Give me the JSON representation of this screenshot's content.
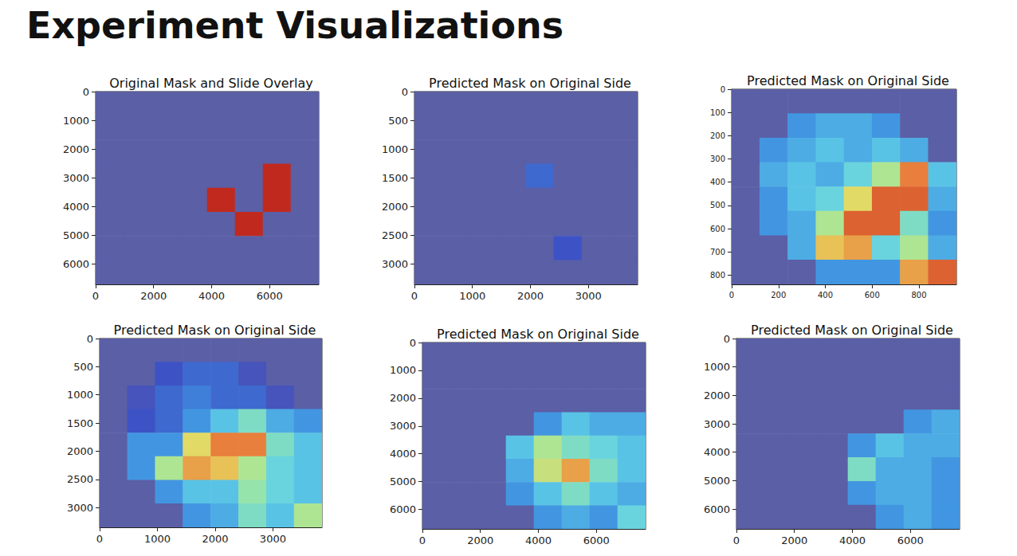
{
  "title": "Experiment Visualizations",
  "chart_data": [
    {
      "type": "heatmap",
      "title": "Original Mask and Slide Overlay",
      "xlim": [
        0,
        7700
      ],
      "xticks": [
        0,
        2000,
        4000,
        6000
      ],
      "ylim": [
        6700,
        0
      ],
      "yticks": [
        0,
        1000,
        2000,
        3000,
        4000,
        5000,
        6000
      ],
      "zlim": [
        0,
        1
      ],
      "x": [
        481,
        1444,
        2406,
        3369,
        4331,
        5294,
        6256,
        7219
      ],
      "y": [
        419,
        1256,
        2094,
        2931,
        3769,
        4606,
        5444,
        6281
      ],
      "z": [
        [
          0,
          0,
          0,
          0,
          0,
          0,
          0,
          0
        ],
        [
          0,
          0,
          0,
          0,
          0,
          0,
          0,
          0
        ],
        [
          0,
          0,
          0,
          0,
          0,
          0,
          0,
          0
        ],
        [
          0,
          0,
          0,
          0,
          0,
          0,
          1,
          0
        ],
        [
          0,
          0,
          0,
          0,
          1,
          0,
          1,
          0
        ],
        [
          0,
          0,
          0,
          0,
          0,
          1,
          0,
          0
        ],
        [
          0,
          0,
          0,
          0,
          0,
          0,
          0,
          0
        ],
        [
          0,
          0,
          0,
          0,
          0,
          0,
          0,
          0
        ]
      ]
    },
    {
      "type": "heatmap",
      "title": "Predicted Mask on Original Side",
      "xlim": [
        0,
        3850
      ],
      "xticks": [
        0,
        1000,
        2000,
        3000
      ],
      "ylim": [
        3350,
        0
      ],
      "yticks": [
        0,
        500,
        1000,
        1500,
        2000,
        2500,
        3000
      ],
      "zlim": [
        0,
        1
      ],
      "x": [
        241,
        722,
        1203,
        1684,
        2166,
        2647,
        3128,
        3609
      ],
      "y": [
        209,
        628,
        1047,
        1466,
        1884,
        2303,
        2722,
        3141
      ],
      "z": [
        [
          0,
          0,
          0,
          0,
          0,
          0,
          0,
          0
        ],
        [
          0,
          0,
          0,
          0,
          0,
          0,
          0,
          0
        ],
        [
          0,
          0,
          0,
          0,
          0,
          0,
          0,
          0
        ],
        [
          0,
          0,
          0,
          0,
          0.2,
          0,
          0,
          0
        ],
        [
          0,
          0,
          0,
          0,
          0,
          0,
          0,
          0
        ],
        [
          0,
          0,
          0,
          0,
          0,
          0,
          0,
          0
        ],
        [
          0,
          0,
          0,
          0,
          0,
          0.15,
          0,
          0
        ],
        [
          0,
          0,
          0,
          0,
          0,
          0,
          0,
          0
        ]
      ]
    },
    {
      "type": "heatmap",
      "title": "Predicted Mask on Original Side",
      "xlim": [
        0,
        960
      ],
      "xticks": [
        0,
        200,
        400,
        600,
        800
      ],
      "ylim": [
        840,
        0
      ],
      "yticks": [
        0,
        100,
        200,
        300,
        400,
        500,
        600,
        700,
        800
      ],
      "zlim": [
        0,
        1
      ],
      "x": [
        60,
        180,
        300,
        420,
        540,
        660,
        780,
        900
      ],
      "y": [
        52.5,
        157.5,
        262.5,
        367.5,
        472.5,
        577.5,
        682.5,
        787.5
      ],
      "z": [
        [
          0,
          0,
          0,
          0,
          0,
          0,
          0,
          0
        ],
        [
          0,
          0,
          0.3,
          0.35,
          0.35,
          0.3,
          0,
          0
        ],
        [
          0,
          0.3,
          0.35,
          0.4,
          0.35,
          0.4,
          0.35,
          0
        ],
        [
          0,
          0.35,
          0.4,
          0.35,
          0.45,
          0.6,
          0.85,
          0.4
        ],
        [
          0,
          0.3,
          0.4,
          0.45,
          0.7,
          0.9,
          0.9,
          0.35
        ],
        [
          0,
          0.3,
          0.35,
          0.6,
          0.9,
          0.9,
          0.5,
          0.3
        ],
        [
          0,
          0,
          0.35,
          0.75,
          0.8,
          0.45,
          0.6,
          0.35
        ],
        [
          0,
          0,
          0,
          0.3,
          0.3,
          0.3,
          0.8,
          0.9
        ]
      ]
    },
    {
      "type": "heatmap",
      "title": "Predicted Mask on Original Side",
      "xlim": [
        0,
        3850
      ],
      "xticks": [
        0,
        1000,
        2000,
        3000
      ],
      "ylim": [
        3350,
        0
      ],
      "yticks": [
        0,
        500,
        1000,
        1500,
        2000,
        2500,
        3000
      ],
      "zlim": [
        0,
        1
      ],
      "x": [
        241,
        722,
        1203,
        1684,
        2166,
        2647,
        3128,
        3609
      ],
      "y": [
        209,
        628,
        1047,
        1466,
        1884,
        2303,
        2722,
        3141
      ],
      "z": [
        [
          0,
          0,
          0,
          0,
          0,
          0,
          0,
          0
        ],
        [
          0,
          0,
          0.15,
          0.2,
          0.2,
          0.1,
          0,
          0
        ],
        [
          0,
          0.1,
          0.2,
          0.25,
          0.2,
          0.2,
          0.1,
          0
        ],
        [
          0,
          0.15,
          0.2,
          0.3,
          0.4,
          0.5,
          0.35,
          0.3
        ],
        [
          0,
          0.3,
          0.3,
          0.7,
          0.85,
          0.85,
          0.5,
          0.4
        ],
        [
          0,
          0.3,
          0.6,
          0.8,
          0.75,
          0.6,
          0.45,
          0.4
        ],
        [
          0,
          0,
          0.3,
          0.4,
          0.4,
          0.55,
          0.45,
          0.4
        ],
        [
          0,
          0,
          0,
          0.3,
          0.35,
          0.5,
          0.4,
          0.6
        ]
      ]
    },
    {
      "type": "heatmap",
      "title": "Predicted Mask on Original Side",
      "xlim": [
        0,
        7700
      ],
      "xticks": [
        0,
        2000,
        4000,
        6000
      ],
      "ylim": [
        6700,
        0
      ],
      "yticks": [
        0,
        1000,
        2000,
        3000,
        4000,
        5000,
        6000
      ],
      "zlim": [
        0,
        1
      ],
      "x": [
        481,
        1444,
        2406,
        3369,
        4331,
        5294,
        6256,
        7219
      ],
      "y": [
        419,
        1256,
        2094,
        2931,
        3769,
        4606,
        5444,
        6281
      ],
      "z": [
        [
          0,
          0,
          0,
          0,
          0,
          0,
          0,
          0
        ],
        [
          0,
          0,
          0,
          0,
          0,
          0,
          0,
          0
        ],
        [
          0,
          0,
          0,
          0,
          0,
          0,
          0,
          0
        ],
        [
          0,
          0,
          0,
          0,
          0.3,
          0.4,
          0.35,
          0.35
        ],
        [
          0,
          0,
          0,
          0.4,
          0.6,
          0.5,
          0.45,
          0.4
        ],
        [
          0,
          0,
          0,
          0.35,
          0.65,
          0.8,
          0.5,
          0.4
        ],
        [
          0,
          0,
          0,
          0.3,
          0.4,
          0.5,
          0.4,
          0.35
        ],
        [
          0,
          0,
          0,
          0,
          0.3,
          0.35,
          0.3,
          0.45
        ]
      ]
    },
    {
      "type": "heatmap",
      "title": "Predicted Mask on Original Side",
      "xlim": [
        0,
        7700
      ],
      "xticks": [
        0,
        2000,
        4000,
        6000
      ],
      "ylim": [
        6700,
        0
      ],
      "yticks": [
        0,
        1000,
        2000,
        3000,
        4000,
        5000,
        6000
      ],
      "zlim": [
        0,
        1
      ],
      "x": [
        481,
        1444,
        2406,
        3369,
        4331,
        5294,
        6256,
        7219
      ],
      "y": [
        419,
        1256,
        2094,
        2931,
        3769,
        4606,
        5444,
        6281
      ],
      "z": [
        [
          0,
          0,
          0,
          0,
          0,
          0,
          0,
          0
        ],
        [
          0,
          0,
          0,
          0,
          0,
          0,
          0,
          0
        ],
        [
          0,
          0,
          0,
          0,
          0,
          0,
          0,
          0
        ],
        [
          0,
          0,
          0,
          0,
          0,
          0,
          0.3,
          0.35
        ],
        [
          0,
          0,
          0,
          0,
          0.3,
          0.4,
          0.35,
          0.35
        ],
        [
          0,
          0,
          0,
          0,
          0.5,
          0.35,
          0.35,
          0.3
        ],
        [
          0,
          0,
          0,
          0,
          0.3,
          0.35,
          0.35,
          0.3
        ],
        [
          0,
          0,
          0,
          0,
          0,
          0.3,
          0.35,
          0.3
        ]
      ]
    }
  ]
}
